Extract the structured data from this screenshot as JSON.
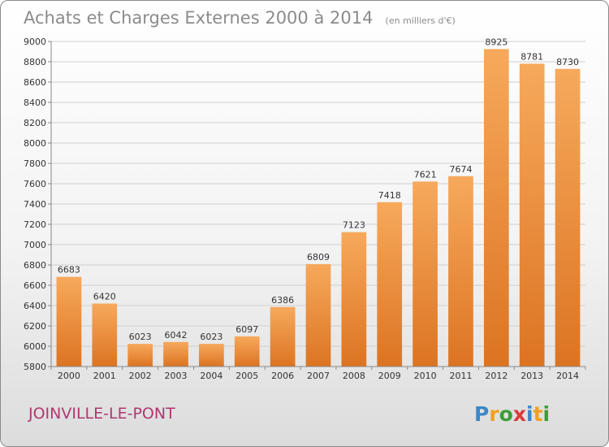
{
  "page": {
    "city": "JOINVILLE-LE-PONT",
    "logo": {
      "letters": [
        "P",
        "r",
        "o",
        "x",
        "i",
        "t",
        "i"
      ],
      "colors": [
        "#3c87c8",
        "#f0a020",
        "#3a9e3a",
        "#d83a3a",
        "#3c87c8",
        "#f0a020",
        "#3a9e3a"
      ]
    }
  },
  "chart_data": {
    "type": "bar",
    "title": "Achats et Charges Externes 2000 à 2014",
    "subtitle": "(en milliers d'€)",
    "xlabel": "",
    "ylabel": "",
    "categories": [
      "2000",
      "2001",
      "2002",
      "2003",
      "2004",
      "2005",
      "2006",
      "2007",
      "2008",
      "2009",
      "2010",
      "2011",
      "2012",
      "2013",
      "2014"
    ],
    "values": [
      6683,
      6420,
      6023,
      6042,
      6023,
      6097,
      6386,
      6809,
      7123,
      7418,
      7621,
      7674,
      8925,
      8781,
      8730
    ],
    "ylim": [
      5800,
      9000
    ],
    "yticks": [
      5800,
      6000,
      6200,
      6400,
      6600,
      6800,
      7000,
      7200,
      7400,
      7600,
      7800,
      8000,
      8200,
      8400,
      8600,
      8800,
      9000
    ],
    "grid": true,
    "bar_color_top": "#f7a95c",
    "bar_color_bottom": "#dc7422"
  }
}
